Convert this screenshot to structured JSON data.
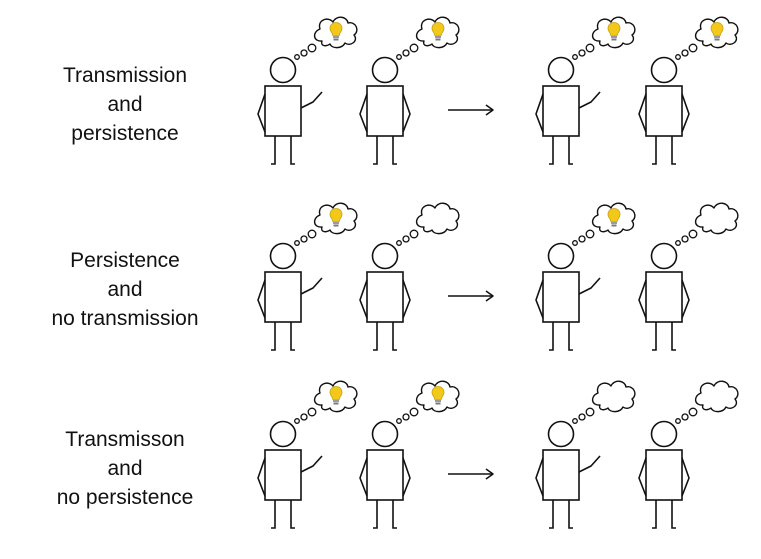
{
  "rows": [
    {
      "label_lines": [
        "Transmission",
        "and",
        "persistence"
      ],
      "before": {
        "speaker_idea": true,
        "listener_idea": true
      },
      "after": {
        "speaker_idea": true,
        "listener_idea": true
      }
    },
    {
      "label_lines": [
        "Persistence",
        "and",
        "no transmission"
      ],
      "before": {
        "speaker_idea": true,
        "listener_idea": false
      },
      "after": {
        "speaker_idea": true,
        "listener_idea": false
      }
    },
    {
      "label_lines": [
        "Transmisson",
        "and",
        "no persistence"
      ],
      "before": {
        "speaker_idea": true,
        "listener_idea": true
      },
      "after": {
        "speaker_idea": false,
        "listener_idea": false
      }
    }
  ],
  "icons": {
    "idea": "lightbulb-icon",
    "arrow": "right-arrow-icon"
  },
  "colors": {
    "stroke": "#111111",
    "bulb": "#f2c81a",
    "background": "#ffffff"
  }
}
